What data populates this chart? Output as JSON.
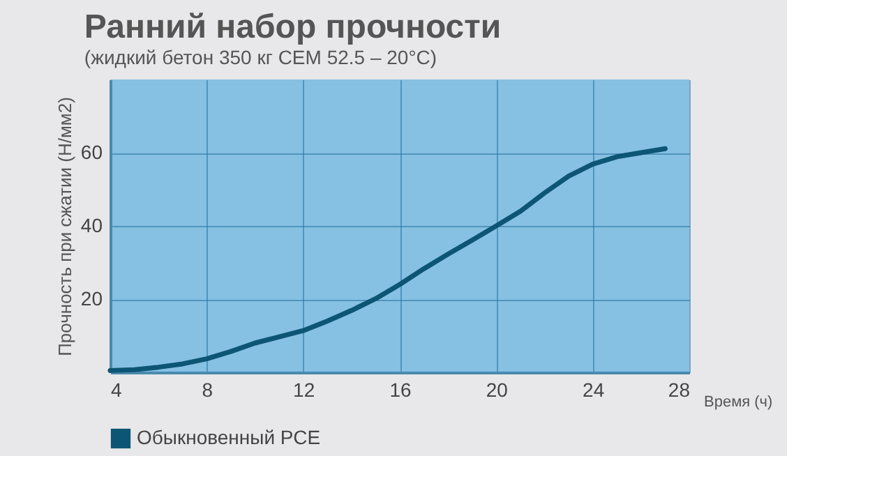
{
  "chart_data": {
    "type": "line",
    "title": "Ранний набор прочности",
    "subtitle": "(жидкий бетон 350 кг CEM 52.5 – 20°C)",
    "xlabel": "Время (ч)",
    "ylabel": "Прочность при сжатии (Н/мм2)",
    "x": [
      4,
      5,
      6,
      7,
      8,
      9,
      10,
      11,
      12,
      13,
      14,
      15,
      16,
      17,
      18,
      19,
      20,
      21,
      22,
      23,
      24,
      25,
      26,
      27
    ],
    "series": [
      {
        "name": "Обыкновенный РСЕ",
        "color": "#0d5574",
        "values": [
          0.5,
          0.7,
          1.4,
          2.3,
          3.7,
          5.7,
          8,
          9.7,
          11.4,
          14,
          16.9,
          20.1,
          24,
          28.3,
          32.3,
          36.1,
          40,
          44,
          49,
          53.6,
          56.9,
          58.9,
          60,
          61.1
        ]
      }
    ],
    "xlim": [
      4,
      28
    ],
    "xticks": [
      4,
      8,
      12,
      16,
      20,
      24,
      28
    ],
    "ylim": [
      0,
      80
    ],
    "yticks": [
      20,
      40,
      60
    ],
    "grid": true,
    "legend": "bottom left",
    "marker": "none",
    "line_style": "solid"
  }
}
